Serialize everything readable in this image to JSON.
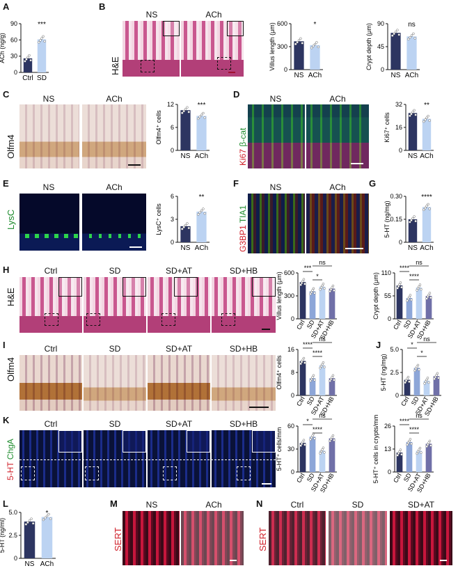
{
  "panel_labels": {
    "A": "A",
    "B": "B",
    "C": "C",
    "D": "D",
    "E": "E",
    "F": "F",
    "G": "G",
    "H": "H",
    "I": "I",
    "J": "J",
    "K": "K",
    "L": "L",
    "M": "M",
    "N": "N"
  },
  "image_labels": {
    "NS": "NS",
    "ACh": "ACh",
    "Ctrl": "Ctrl",
    "SD": "SD",
    "SD_AT": "SD+AT",
    "SD_HB": "SD+HB",
    "HE": "H&E",
    "Olfm4": "Olfm4",
    "Ki67": "Ki67",
    "bcat": "β-cat",
    "LysC": "LysC",
    "G3BP1": "G3BP1",
    "TIA1": "TIA1",
    "HT5": "5-HT",
    "ChgA": "ChgA",
    "SERT": "SERT"
  },
  "colors": {
    "dark": "#2d3561",
    "light": "#bcd3f2",
    "mid": "#8da6d8"
  },
  "chart_data": [
    {
      "id": "A",
      "type": "bar",
      "ylabel": "ACh (ng/g)",
      "categories": [
        "Ctrl",
        "SD"
      ],
      "values": [
        26,
        61
      ],
      "ylim": [
        0,
        90
      ],
      "yticks": [
        "0",
        "30",
        "60",
        "90"
      ],
      "sig": "***"
    },
    {
      "id": "B1",
      "type": "bar",
      "ylabel": "Villus length (μm)",
      "categories": [
        "NS",
        "ACh"
      ],
      "values": [
        370,
        320
      ],
      "ylim": [
        0,
        600
      ],
      "yticks": [
        "0",
        "300",
        "600"
      ],
      "sig": "*"
    },
    {
      "id": "B2",
      "type": "bar",
      "ylabel": "Crypt depth (μm)",
      "categories": [
        "NS",
        "ACh"
      ],
      "values": [
        72,
        65
      ],
      "ylim": [
        0,
        90
      ],
      "yticks": [
        "0",
        "45",
        "90"
      ],
      "sig": "ns"
    },
    {
      "id": "C",
      "type": "bar",
      "ylabel": "Olfm4⁺ cells",
      "categories": [
        "NS",
        "ACh"
      ],
      "values": [
        10.5,
        9.0
      ],
      "ylim": [
        0,
        12
      ],
      "yticks": [
        "0",
        "6",
        "12"
      ],
      "sig": "***"
    },
    {
      "id": "D",
      "type": "bar",
      "ylabel": "Ki67⁺ cells",
      "categories": [
        "NS",
        "ACh"
      ],
      "values": [
        26,
        22
      ],
      "ylim": [
        0,
        32
      ],
      "yticks": [
        "0",
        "16",
        "32"
      ],
      "sig": "**"
    },
    {
      "id": "E",
      "type": "bar",
      "ylabel": "LysC⁺ cells",
      "categories": [
        "NS",
        "ACh"
      ],
      "values": [
        2.1,
        4.0
      ],
      "ylim": [
        0,
        6
      ],
      "yticks": [
        "0",
        "3",
        "6"
      ],
      "sig": "**"
    },
    {
      "id": "G",
      "type": "bar",
      "ylabel": "5-HT (ng/mg)",
      "categories": [
        "NS",
        "ACh"
      ],
      "values": [
        0.15,
        0.23
      ],
      "ylim": [
        0,
        0.3
      ],
      "yticks": [
        "0",
        "0.15",
        "0.30"
      ],
      "sig": "****"
    },
    {
      "id": "H1",
      "type": "bar",
      "ylabel": "Villus length (μm)",
      "categories": [
        "Ctrl",
        "SD",
        "SD+AT",
        "SD+HB"
      ],
      "values": [
        480,
        360,
        420,
        395
      ],
      "ylim": [
        0,
        600
      ],
      "yticks": [
        "0",
        "300",
        "600"
      ],
      "sig": [
        "***",
        "*",
        "ns"
      ]
    },
    {
      "id": "H2",
      "type": "bar",
      "ylabel": "Crypt depth (μm)",
      "categories": [
        "Ctrl",
        "SD",
        "SD+AT",
        "SD+HB"
      ],
      "values": [
        80,
        50,
        75,
        55
      ],
      "ylim": [
        0,
        110
      ],
      "yticks": [
        "0",
        "55",
        "110"
      ],
      "sig": [
        "****",
        "****",
        "ns"
      ]
    },
    {
      "id": "I",
      "type": "bar",
      "ylabel": "Olfm4⁺ cells",
      "categories": [
        "Ctrl",
        "SD",
        "SD+AT",
        "SD+HB"
      ],
      "values": [
        12,
        6,
        10.5,
        6
      ],
      "ylim": [
        0,
        16
      ],
      "yticks": [
        "0",
        "8",
        "16"
      ],
      "sig": [
        "****",
        "****",
        "ns"
      ]
    },
    {
      "id": "J",
      "type": "bar",
      "ylabel": "5-HT (ng/mg)",
      "categories": [
        "Ctrl",
        "SD",
        "SD+AT",
        "SD+HB"
      ],
      "values": [
        1.7,
        3.0,
        1.6,
        2.1
      ],
      "ylim": [
        0,
        5
      ],
      "yticks": [
        "0",
        "2.5",
        "5.0"
      ],
      "sig": [
        "*",
        "*",
        "ns"
      ]
    },
    {
      "id": "K1",
      "type": "bar",
      "ylabel": "5-HT⁺ cells/mm",
      "categories": [
        "Ctrl",
        "SD",
        "SD+AT",
        "SD+HB"
      ],
      "values": [
        38,
        46,
        28,
        44
      ],
      "ylim": [
        0,
        60
      ],
      "yticks": [
        "0",
        "30",
        "60"
      ],
      "sig": [
        "*",
        "****",
        "ns"
      ]
    },
    {
      "id": "K2",
      "type": "bar",
      "ylabel": "5-HT⁺ cells in crypts/mm",
      "categories": [
        "Ctrl",
        "SD",
        "SD+AT",
        "SD+HB"
      ],
      "values": [
        11,
        17,
        12,
        16
      ],
      "ylim": [
        0,
        26
      ],
      "yticks": [
        "0",
        "13",
        "26"
      ],
      "sig": [
        "****",
        "****",
        "ns"
      ]
    },
    {
      "id": "L",
      "type": "bar",
      "ylabel": "5-HT (ng/ml)",
      "categories": [
        "NS",
        "ACh"
      ],
      "values": [
        4.0,
        4.5
      ],
      "ylim": [
        0,
        5
      ],
      "yticks": [
        "0",
        "2.5",
        "5.0"
      ],
      "sig": "*"
    }
  ]
}
